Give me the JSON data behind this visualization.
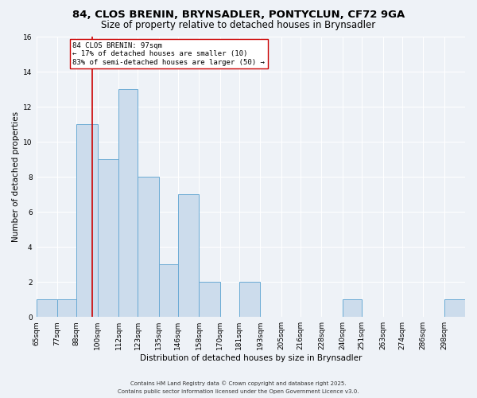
{
  "title": "84, CLOS BRENIN, BRYNSADLER, PONTYCLUN, CF72 9GA",
  "subtitle": "Size of property relative to detached houses in Brynsadler",
  "xlabel": "Distribution of detached houses by size in Brynsadler",
  "ylabel": "Number of detached properties",
  "bin_labels": [
    "65sqm",
    "77sqm",
    "88sqm",
    "100sqm",
    "112sqm",
    "123sqm",
    "135sqm",
    "146sqm",
    "158sqm",
    "170sqm",
    "181sqm",
    "193sqm",
    "205sqm",
    "216sqm",
    "228sqm",
    "240sqm",
    "251sqm",
    "263sqm",
    "274sqm",
    "286sqm",
    "298sqm"
  ],
  "bin_edges": [
    65,
    77,
    88,
    100,
    112,
    123,
    135,
    146,
    158,
    170,
    181,
    193,
    205,
    216,
    228,
    240,
    251,
    263,
    274,
    286,
    298,
    310
  ],
  "bar_values": [
    1,
    1,
    11,
    9,
    13,
    8,
    3,
    7,
    2,
    0,
    2,
    0,
    0,
    0,
    0,
    1,
    0,
    0,
    0,
    0,
    1
  ],
  "bar_color": "#ccdcec",
  "bar_edge_color": "#6aaad4",
  "vline_x": 97,
  "vline_color": "#cc0000",
  "annotation_text": "84 CLOS BRENIN: 97sqm\n← 17% of detached houses are smaller (10)\n83% of semi-detached houses are larger (50) →",
  "annotation_box_color": "#ffffff",
  "annotation_box_edge": "#cc0000",
  "ylim": [
    0,
    16
  ],
  "yticks": [
    0,
    2,
    4,
    6,
    8,
    10,
    12,
    14,
    16
  ],
  "footnote1": "Contains HM Land Registry data © Crown copyright and database right 2025.",
  "footnote2": "Contains public sector information licensed under the Open Government Licence v3.0.",
  "background_color": "#eef2f7",
  "grid_color": "#ffffff",
  "title_fontsize": 9.5,
  "subtitle_fontsize": 8.5,
  "tick_fontsize": 6.5,
  "ylabel_fontsize": 7.5,
  "xlabel_fontsize": 7.5,
  "footnote_fontsize": 5.0
}
